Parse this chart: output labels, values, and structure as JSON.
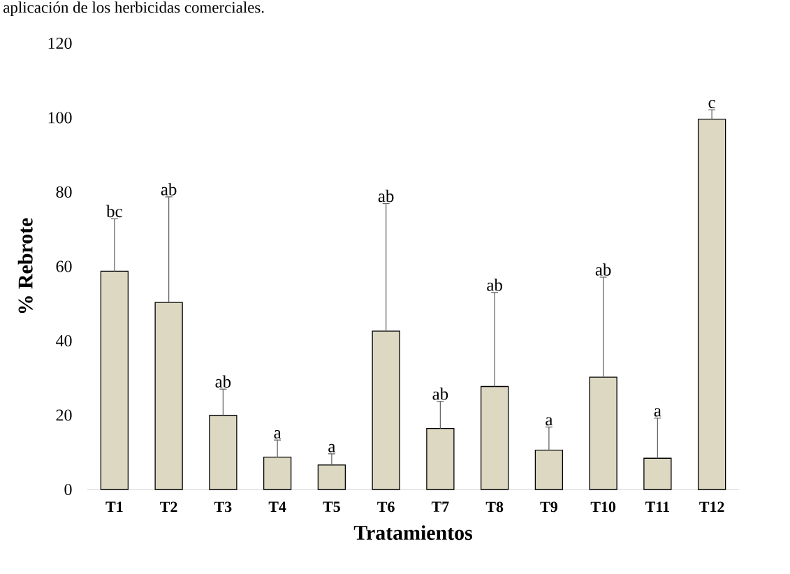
{
  "chart_data": {
    "type": "bar",
    "xlabel": "Tratamientos",
    "ylabel": "% Rebrote",
    "categories": [
      "T1",
      "T2",
      "T3",
      "T4",
      "T5",
      "T6",
      "T7",
      "T8",
      "T9",
      "T10",
      "T11",
      "T12"
    ],
    "values": [
      58.7,
      50.3,
      19.9,
      8.7,
      6.6,
      42.6,
      16.4,
      27.7,
      10.6,
      30.2,
      8.4,
      99.6
    ],
    "errors": [
      [
        58.7,
        72.8
      ],
      [
        50.3,
        78.7
      ],
      [
        19.9,
        27.0
      ],
      [
        8.7,
        13.3
      ],
      [
        6.6,
        9.6
      ],
      [
        42.6,
        76.9
      ],
      [
        16.4,
        23.7
      ],
      [
        27.7,
        53.0
      ],
      [
        10.6,
        16.8
      ],
      [
        30.2,
        57.1
      ],
      [
        8.4,
        19.2
      ],
      [
        99.6,
        102.1
      ]
    ],
    "color": "#ddd8c2",
    "ylim": [
      0,
      120
    ],
    "yticks": [
      0,
      20,
      40,
      60,
      80,
      100,
      120
    ],
    "annotations": [
      "aplicación de los herbicidas comerciales.",
      {
        "text": "bc",
        "x": "T1",
        "y": 72.8
      },
      {
        "text": "ab",
        "x": "T2",
        "y": 78.7
      },
      {
        "text": "ab",
        "x": "T3",
        "y": 27.0
      },
      {
        "text": "a",
        "x": "T4",
        "y": 13.3
      },
      {
        "text": "a",
        "x": "T5",
        "y": 9.6
      },
      {
        "text": "ab",
        "x": "T6",
        "y": 76.9
      },
      {
        "text": "ab",
        "x": "T7",
        "y": 23.7
      },
      {
        "text": "ab",
        "x": "T8",
        "y": 53.0
      },
      {
        "text": "a",
        "x": "T9",
        "y": 16.8
      },
      {
        "text": "ab",
        "x": "T10",
        "y": 57.1
      },
      {
        "text": "a",
        "x": "T11",
        "y": 19.2
      },
      {
        "text": "c",
        "x": "T12",
        "y": 102.1
      }
    ]
  }
}
